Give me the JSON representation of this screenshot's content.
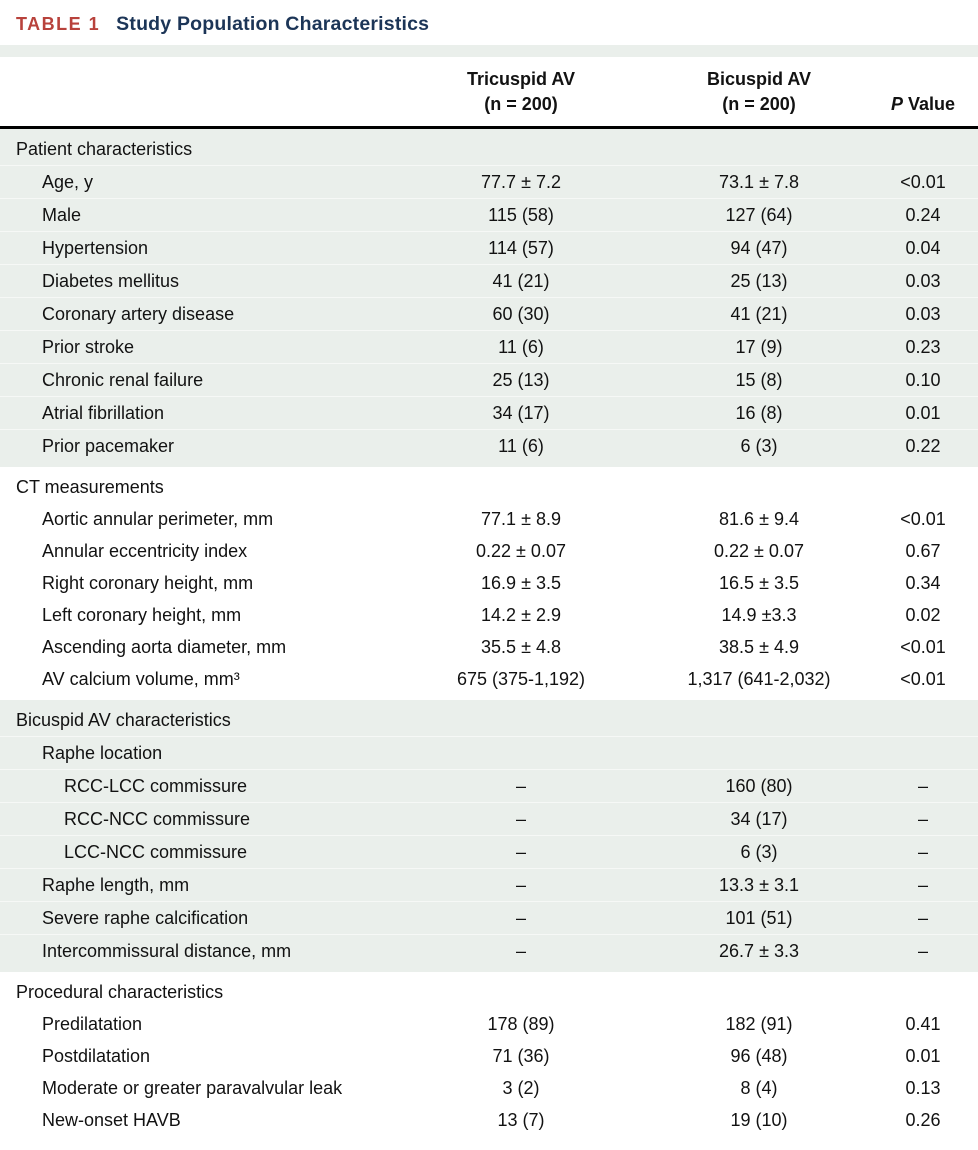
{
  "title": {
    "table_label": "TABLE 1",
    "table_title": "Study Population Characteristics"
  },
  "header": {
    "col_tricuspid_line1": "Tricuspid AV",
    "col_tricuspid_line2": "(n = 200)",
    "col_bicuspid_line1": "Bicuspid AV",
    "col_bicuspid_line2": "(n = 200)",
    "col_p_italic": "P",
    "col_p_rest": " Value"
  },
  "colors": {
    "accent_red": "#B8423C",
    "title_navy": "#1C3557",
    "section_tint": "#EAEFEB",
    "rule_black": "#000000"
  },
  "sections": [
    {
      "name": "Patient characteristics",
      "tinted": true,
      "rows": [
        {
          "label": "Age, y",
          "indent": 1,
          "tricuspid": "77.7 ± 7.2",
          "bicuspid": "73.1 ± 7.8",
          "p": "<0.01"
        },
        {
          "label": "Male",
          "indent": 1,
          "tricuspid": "115 (58)",
          "bicuspid": "127 (64)",
          "p": "0.24"
        },
        {
          "label": "Hypertension",
          "indent": 1,
          "tricuspid": "114 (57)",
          "bicuspid": "94 (47)",
          "p": "0.04"
        },
        {
          "label": "Diabetes mellitus",
          "indent": 1,
          "tricuspid": "41 (21)",
          "bicuspid": "25 (13)",
          "p": "0.03"
        },
        {
          "label": "Coronary artery disease",
          "indent": 1,
          "tricuspid": "60 (30)",
          "bicuspid": "41 (21)",
          "p": "0.03"
        },
        {
          "label": "Prior stroke",
          "indent": 1,
          "tricuspid": "11 (6)",
          "bicuspid": "17 (9)",
          "p": "0.23"
        },
        {
          "label": "Chronic renal failure",
          "indent": 1,
          "tricuspid": "25 (13)",
          "bicuspid": "15 (8)",
          "p": "0.10"
        },
        {
          "label": "Atrial fibrillation",
          "indent": 1,
          "tricuspid": "34 (17)",
          "bicuspid": "16 (8)",
          "p": "0.01"
        },
        {
          "label": "Prior pacemaker",
          "indent": 1,
          "tricuspid": "11 (6)",
          "bicuspid": "6 (3)",
          "p": "0.22"
        }
      ]
    },
    {
      "name": "CT measurements",
      "tinted": false,
      "rows": [
        {
          "label": "Aortic annular perimeter, mm",
          "indent": 1,
          "tricuspid": "77.1 ± 8.9",
          "bicuspid": "81.6 ± 9.4",
          "p": "<0.01"
        },
        {
          "label": "Annular eccentricity index",
          "indent": 1,
          "tricuspid": "0.22 ± 0.07",
          "bicuspid": "0.22 ± 0.07",
          "p": "0.67"
        },
        {
          "label": "Right coronary height, mm",
          "indent": 1,
          "tricuspid": "16.9 ± 3.5",
          "bicuspid": "16.5 ± 3.5",
          "p": "0.34"
        },
        {
          "label": "Left coronary height, mm",
          "indent": 1,
          "tricuspid": "14.2 ± 2.9",
          "bicuspid": "14.9 ±3.3",
          "p": "0.02"
        },
        {
          "label": "Ascending aorta diameter, mm",
          "indent": 1,
          "tricuspid": "35.5 ± 4.8",
          "bicuspid": "38.5 ± 4.9",
          "p": "<0.01"
        },
        {
          "label": "AV calcium volume, mm³",
          "indent": 1,
          "tricuspid": "675 (375-1,192)",
          "bicuspid": "1,317 (641-2,032)",
          "p": "<0.01"
        }
      ]
    },
    {
      "name": "Bicuspid AV characteristics",
      "tinted": true,
      "rows": [
        {
          "label": "Raphe location",
          "indent": 1,
          "tricuspid": "",
          "bicuspid": "",
          "p": ""
        },
        {
          "label": "RCC-LCC commissure",
          "indent": 2,
          "tricuspid": "–",
          "bicuspid": "160 (80)",
          "p": "–"
        },
        {
          "label": "RCC-NCC commissure",
          "indent": 2,
          "tricuspid": "–",
          "bicuspid": "34 (17)",
          "p": "–"
        },
        {
          "label": "LCC-NCC commissure",
          "indent": 2,
          "tricuspid": "–",
          "bicuspid": "6 (3)",
          "p": "–"
        },
        {
          "label": "Raphe length, mm",
          "indent": 1,
          "tricuspid": "–",
          "bicuspid": "13.3 ± 3.1",
          "p": "–"
        },
        {
          "label": "Severe raphe calcification",
          "indent": 1,
          "tricuspid": "–",
          "bicuspid": "101 (51)",
          "p": "–"
        },
        {
          "label": "Intercommissural distance, mm",
          "indent": 1,
          "tricuspid": "–",
          "bicuspid": "26.7 ± 3.3",
          "p": "–"
        }
      ]
    },
    {
      "name": "Procedural characteristics",
      "tinted": false,
      "rows": [
        {
          "label": "Predilatation",
          "indent": 1,
          "tricuspid": "178 (89)",
          "bicuspid": "182 (91)",
          "p": "0.41"
        },
        {
          "label": "Postdilatation",
          "indent": 1,
          "tricuspid": "71 (36)",
          "bicuspid": "96 (48)",
          "p": "0.01"
        },
        {
          "label": "Moderate or greater paravalvular leak",
          "indent": 1,
          "tricuspid": "3 (2)",
          "bicuspid": "8 (4)",
          "p": "0.13"
        },
        {
          "label": "New-onset HAVB",
          "indent": 1,
          "tricuspid": "13 (7)",
          "bicuspid": "19 (10)",
          "p": "0.26"
        }
      ]
    }
  ]
}
